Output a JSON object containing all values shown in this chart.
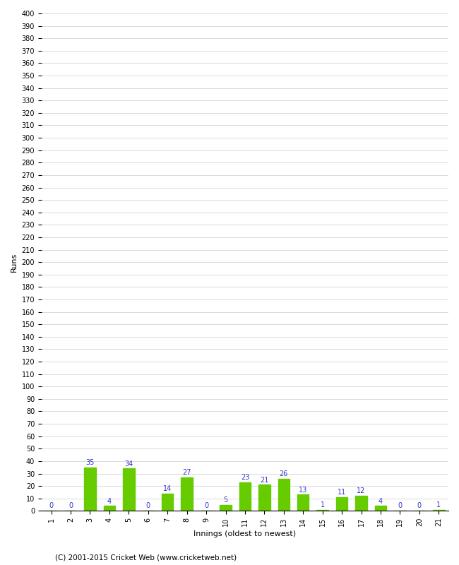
{
  "title": "",
  "xlabel": "Innings (oldest to newest)",
  "ylabel": "Runs",
  "innings": [
    1,
    2,
    3,
    4,
    5,
    6,
    7,
    8,
    9,
    10,
    11,
    12,
    13,
    14,
    15,
    16,
    17,
    18,
    19,
    20,
    21
  ],
  "values": [
    0,
    0,
    35,
    4,
    34,
    0,
    14,
    27,
    0,
    5,
    23,
    21,
    26,
    13,
    1,
    11,
    12,
    4,
    0,
    0,
    1
  ],
  "bar_color": "#66cc00",
  "label_color": "#3333cc",
  "ylim": [
    0,
    400
  ],
  "background_color": "#ffffff",
  "grid_color": "#cccccc",
  "footer": "(C) 2001-2015 Cricket Web (www.cricketweb.net)"
}
